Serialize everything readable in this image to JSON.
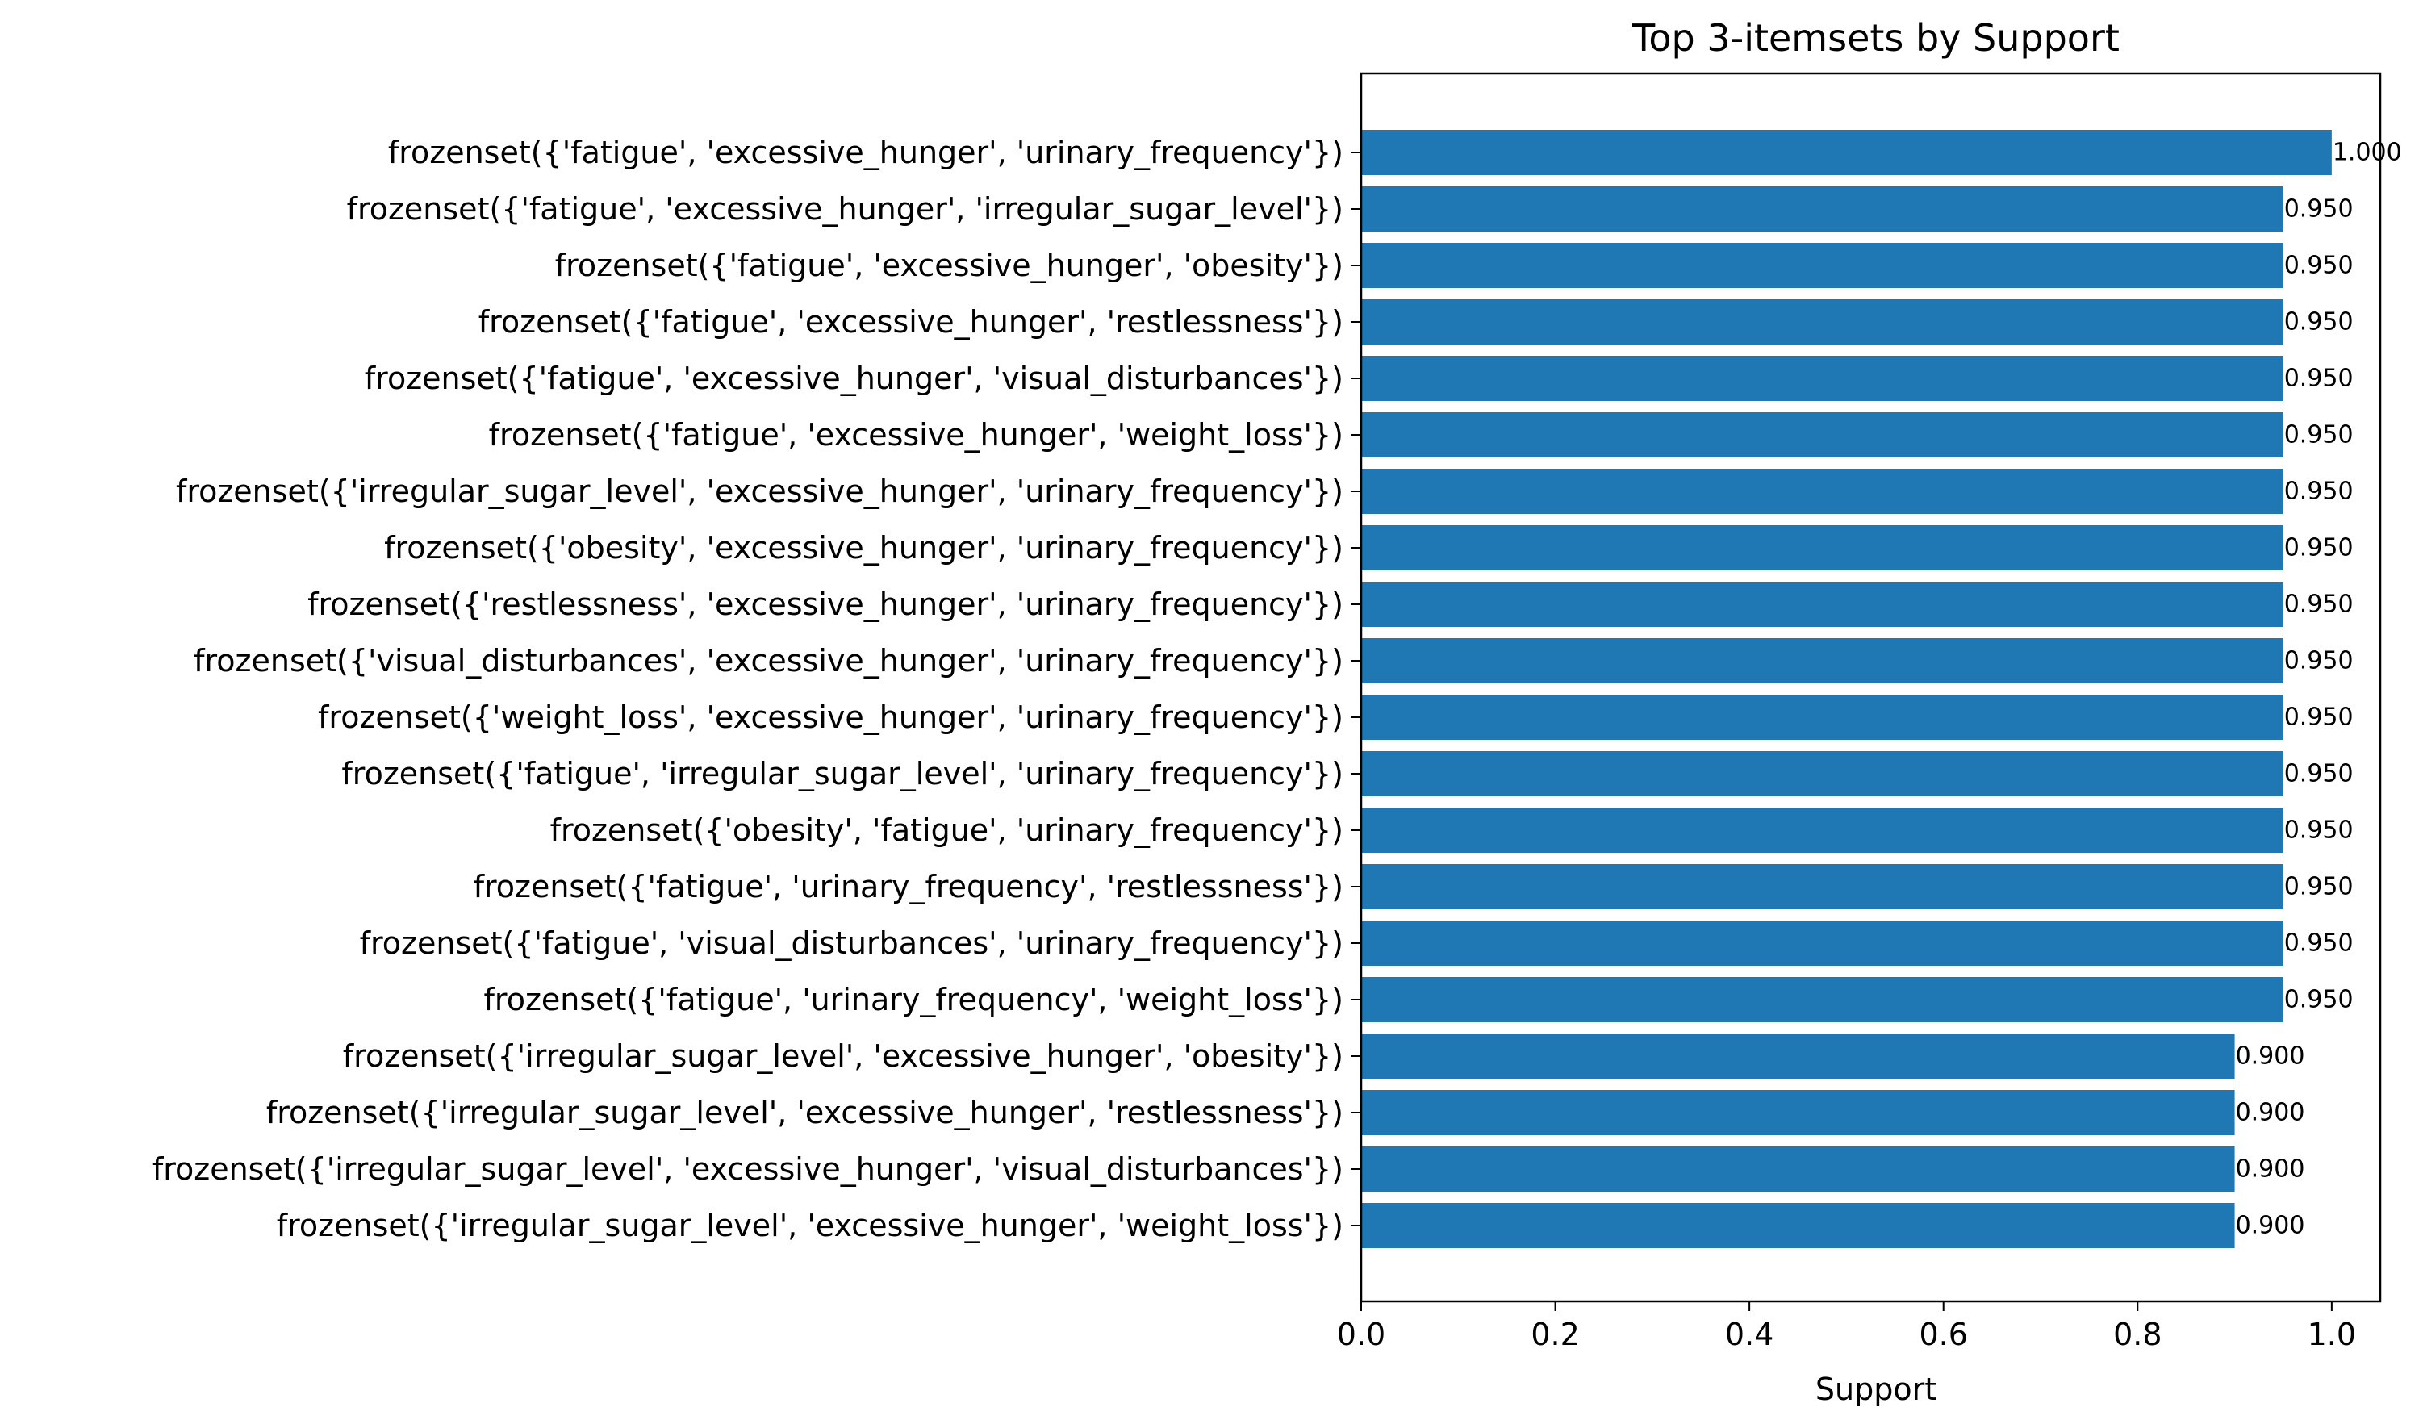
{
  "chart_data": {
    "type": "bar",
    "orientation": "horizontal",
    "title": "Top 3-itemsets by Support",
    "xlabel": "Support",
    "ylabel": "",
    "xlim": [
      0,
      1.05
    ],
    "xticks": [
      "0.0",
      "0.2",
      "0.4",
      "0.6",
      "0.8",
      "1.0"
    ],
    "grid": false,
    "bar_color": "#1f77b4",
    "categories": [
      "frozenset({'fatigue', 'excessive_hunger', 'urinary_frequency'})",
      "frozenset({'fatigue', 'excessive_hunger', 'irregular_sugar_level'})",
      "frozenset({'fatigue', 'excessive_hunger', 'obesity'})",
      "frozenset({'fatigue', 'excessive_hunger', 'restlessness'})",
      "frozenset({'fatigue', 'excessive_hunger', 'visual_disturbances'})",
      "frozenset({'fatigue', 'excessive_hunger', 'weight_loss'})",
      "frozenset({'irregular_sugar_level', 'excessive_hunger', 'urinary_frequency'})",
      "frozenset({'obesity', 'excessive_hunger', 'urinary_frequency'})",
      "frozenset({'restlessness', 'excessive_hunger', 'urinary_frequency'})",
      "frozenset({'visual_disturbances', 'excessive_hunger', 'urinary_frequency'})",
      "frozenset({'weight_loss', 'excessive_hunger', 'urinary_frequency'})",
      "frozenset({'fatigue', 'irregular_sugar_level', 'urinary_frequency'})",
      "frozenset({'obesity', 'fatigue', 'urinary_frequency'})",
      "frozenset({'fatigue', 'urinary_frequency', 'restlessness'})",
      "frozenset({'fatigue', 'visual_disturbances', 'urinary_frequency'})",
      "frozenset({'fatigue', 'urinary_frequency', 'weight_loss'})",
      "frozenset({'irregular_sugar_level', 'excessive_hunger', 'obesity'})",
      "frozenset({'irregular_sugar_level', 'excessive_hunger', 'restlessness'})",
      "frozenset({'irregular_sugar_level', 'excessive_hunger', 'visual_disturbances'})",
      "frozenset({'irregular_sugar_level', 'excessive_hunger', 'weight_loss'})"
    ],
    "values": [
      1.0,
      0.95,
      0.95,
      0.95,
      0.95,
      0.95,
      0.95,
      0.95,
      0.95,
      0.95,
      0.95,
      0.95,
      0.95,
      0.95,
      0.95,
      0.95,
      0.9,
      0.9,
      0.9,
      0.9
    ],
    "value_labels": [
      "1.000",
      "0.950",
      "0.950",
      "0.950",
      "0.950",
      "0.950",
      "0.950",
      "0.950",
      "0.950",
      "0.950",
      "0.950",
      "0.950",
      "0.950",
      "0.950",
      "0.950",
      "0.950",
      "0.900",
      "0.900",
      "0.900",
      "0.900"
    ]
  }
}
